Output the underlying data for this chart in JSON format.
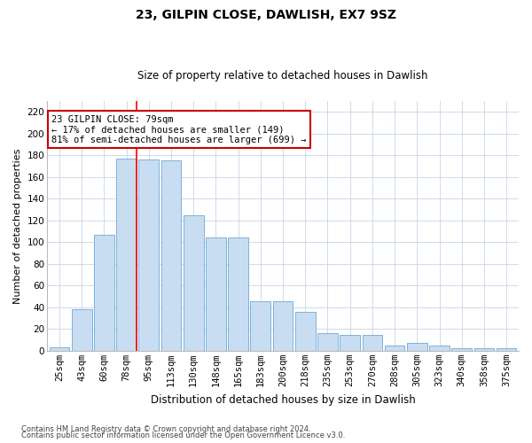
{
  "title1": "23, GILPIN CLOSE, DAWLISH, EX7 9SZ",
  "title2": "Size of property relative to detached houses in Dawlish",
  "xlabel": "Distribution of detached houses by size in Dawlish",
  "ylabel": "Number of detached properties",
  "categories": [
    "25sqm",
    "43sqm",
    "60sqm",
    "78sqm",
    "95sqm",
    "113sqm",
    "130sqm",
    "148sqm",
    "165sqm",
    "183sqm",
    "200sqm",
    "218sqm",
    "235sqm",
    "253sqm",
    "270sqm",
    "288sqm",
    "305sqm",
    "323sqm",
    "340sqm",
    "358sqm",
    "375sqm"
  ],
  "values": [
    3,
    38,
    107,
    177,
    176,
    175,
    125,
    104,
    104,
    46,
    46,
    36,
    16,
    15,
    15,
    5,
    7,
    5,
    2,
    2,
    2
  ],
  "bar_color": "#c9ddf2",
  "bar_edge_color": "#6aaad4",
  "red_line_index": 3,
  "annotation_text": "23 GILPIN CLOSE: 79sqm\n← 17% of detached houses are smaller (149)\n81% of semi-detached houses are larger (699) →",
  "annotation_box_color": "#ffffff",
  "annotation_box_edge": "#cc0000",
  "ylim": [
    0,
    230
  ],
  "yticks": [
    0,
    20,
    40,
    60,
    80,
    100,
    120,
    140,
    160,
    180,
    200,
    220
  ],
  "footer1": "Contains HM Land Registry data © Crown copyright and database right 2024.",
  "footer2": "Contains public sector information licensed under the Open Government Licence v3.0.",
  "bg_color": "#ffffff",
  "grid_color": "#c8d4e8",
  "title1_fontsize": 10,
  "title2_fontsize": 8.5,
  "xlabel_fontsize": 8.5,
  "ylabel_fontsize": 8,
  "tick_fontsize": 7.5,
  "footer_fontsize": 6,
  "ann_fontsize": 7.5
}
